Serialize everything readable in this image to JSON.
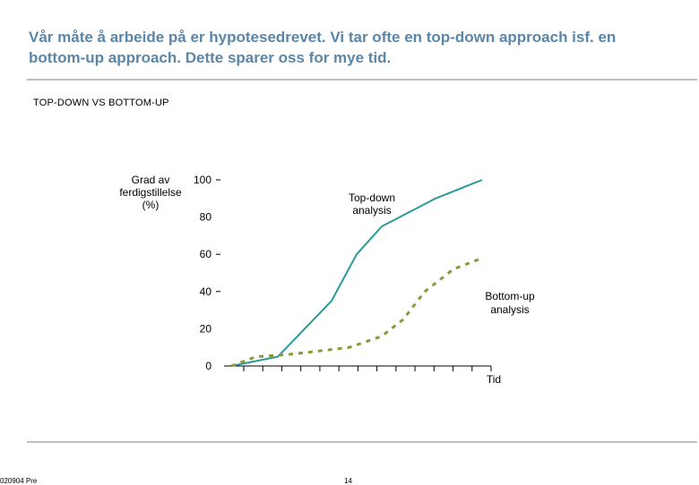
{
  "header": {
    "headline": "Vår måte å arbeide på er hypotesedrevet. Vi tar ofte en top-down approach isf. en bottom-up approach. Dette sparer oss for mye tid."
  },
  "section": {
    "title": "TOP-DOWN VS BOTTOM-UP"
  },
  "footer": {
    "left_text": "020904 Pre",
    "page_number": "14"
  },
  "colors": {
    "headline": "#5b86a8",
    "top_down": "#2a9a99",
    "bottom_up": "#8a9a3a",
    "rule": "#bfbfbf"
  },
  "chart_data": {
    "type": "line",
    "title": "",
    "ylabel_lines": [
      "Grad av",
      "ferdigstillelse",
      "(%)"
    ],
    "xlabel": "Tid",
    "ylim": [
      0,
      100
    ],
    "yticks": [
      "0",
      "20",
      "40",
      "60",
      "80",
      "100"
    ],
    "x_tick_count": 14,
    "series": [
      {
        "name": "Top-down analysis",
        "label_lines": [
          "Top-down",
          "analysis"
        ],
        "style": "solid",
        "points": [
          [
            0,
            0
          ],
          [
            1.3,
            5
          ],
          [
            2.8,
            35
          ],
          [
            3.5,
            60
          ],
          [
            4.2,
            75
          ],
          [
            5,
            83
          ],
          [
            5.7,
            90
          ],
          [
            7,
            100
          ]
        ]
      },
      {
        "name": "Bottom-up analysis",
        "label_lines": [
          "Bottom-up",
          "analysis"
        ],
        "style": "dashed",
        "points": [
          [
            0,
            0
          ],
          [
            0.7,
            5
          ],
          [
            1.5,
            6
          ],
          [
            2,
            7
          ],
          [
            3.3,
            10
          ],
          [
            4.2,
            16
          ],
          [
            4.8,
            25
          ],
          [
            5.4,
            40
          ],
          [
            6.2,
            52
          ],
          [
            7,
            58
          ]
        ]
      }
    ],
    "x_max": 7
  }
}
